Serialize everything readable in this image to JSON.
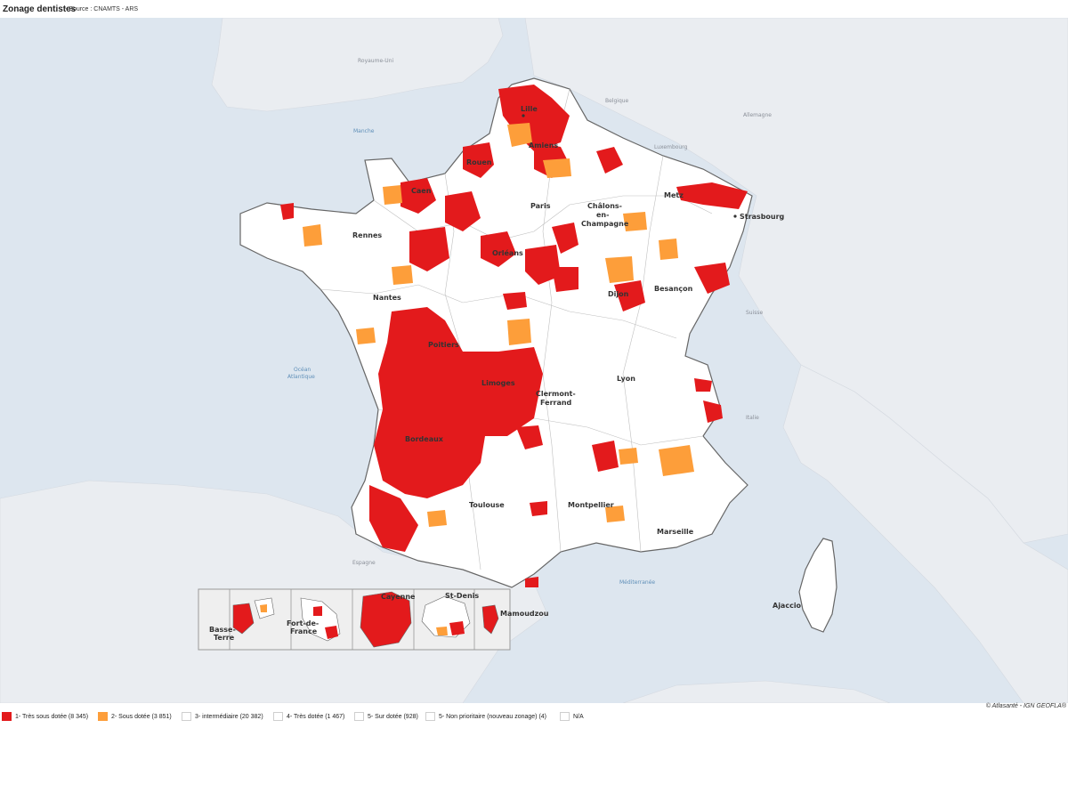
{
  "header": {
    "title": "Zonage dentistes",
    "subtitle": "- Source : CNAMTS - ARS"
  },
  "colors": {
    "sea": "#dde6ef",
    "land_foreign": "#eaedf1",
    "france_fill": "#ffffff",
    "tres_sous_dotee": "#e31a1c",
    "sous_dotee": "#fd9e3a",
    "border": "#666666"
  },
  "map": {
    "cities": [
      "Lille",
      "Amiens",
      "Rouen",
      "Caen",
      "Paris",
      "Châlons-",
      "en-",
      "Champagne",
      "Metz",
      "Strasbourg",
      "Rennes",
      "Orléans",
      "Nantes",
      "Dijon",
      "Besançon",
      "Poitiers",
      "Limoges",
      "Lyon",
      "Clermont-",
      "Ferrand",
      "Bordeaux",
      "Toulouse",
      "Montpellier",
      "Marseille",
      "Ajaccio"
    ],
    "countries": [
      "Royaume-Uni",
      "Belgique",
      "Allemagne",
      "Luxembourg",
      "Suisse",
      "Italie",
      "Espagne"
    ],
    "seas": [
      "Manche",
      "Océan",
      "Atlantique",
      "Méditerranée"
    ],
    "overseas": [
      "Basse-",
      "Terre",
      "Fort-de-",
      "France",
      "Cayenne",
      "St-Denis",
      "Mamoudzou"
    ]
  },
  "credit": "© Atlasanté - IGN GEOFLA®",
  "legend": {
    "items": [
      {
        "label": "1- Très sous dotée (8 345)",
        "color": "#e31a1c"
      },
      {
        "label": "2- Sous dotée (3 851)",
        "color": "#fd9e3a"
      },
      {
        "label": "3- intermédiaire (20 382)",
        "color": "#ffffff"
      },
      {
        "label": "4- Très dotée (1 467)",
        "color": "#ffffff"
      },
      {
        "label": "5- Sur dotée (928)",
        "color": "#ffffff"
      },
      {
        "label": "5- Non prioritaire (nouveau zonage) (4)",
        "color": "#ffffff"
      },
      {
        "label": "N/A",
        "color": "#ffffff"
      }
    ]
  }
}
